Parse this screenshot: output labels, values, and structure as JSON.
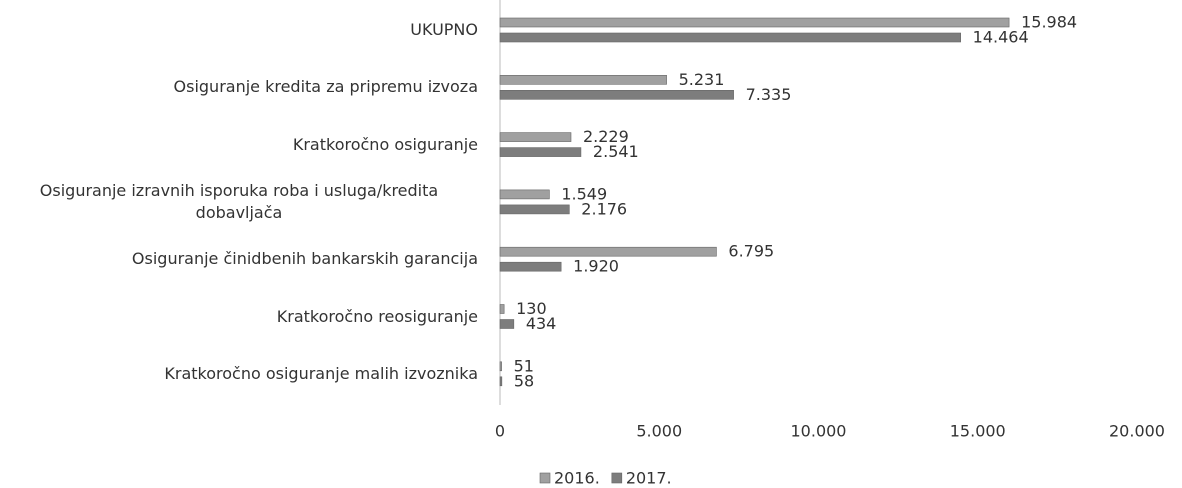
{
  "chart_data": {
    "type": "bar",
    "orientation": "horizontal",
    "categories": [
      "UKUPNO",
      "Osiguranje kredita za pripremu izvoza",
      "Kratkoročno osiguranje",
      "Osiguranje izravnih isporuka roba i usluga/kredita dobavljača",
      "Osiguranje činidbenih bankarskih garancija",
      "Kratkoročno reosiguranje",
      "Kratkoročno osiguranje malih izvoznika"
    ],
    "series": [
      {
        "name": "2016.",
        "color": "#a0a0a0",
        "values": [
          15984,
          5231,
          2229,
          1549,
          6795,
          130,
          51
        ],
        "value_labels": [
          "15.984",
          "5.231",
          "2.229",
          "1.549",
          "6.795",
          "130",
          "51"
        ]
      },
      {
        "name": "2017.",
        "color": "#7d7d7d",
        "values": [
          14464,
          7335,
          2541,
          2176,
          1920,
          434,
          58
        ],
        "value_labels": [
          "14.464",
          "7.335",
          "2.541",
          "2.176",
          "1.920",
          "434",
          "58"
        ]
      }
    ],
    "xlim": [
      0,
      20000
    ],
    "xticks": [
      0,
      {
        "value": 5000,
        "label": "5.000"
      },
      {
        "value": 10000,
        "label": "10.000"
      },
      {
        "value": 15000,
        "label": "15.000"
      },
      {
        "value": 20000,
        "label": "20.000"
      }
    ],
    "legend": "bottom"
  }
}
